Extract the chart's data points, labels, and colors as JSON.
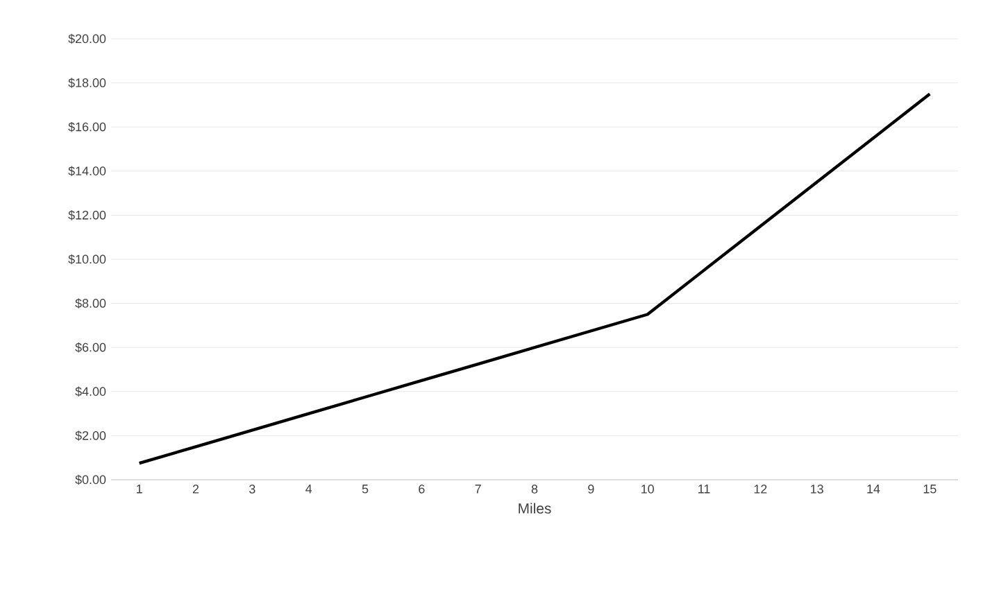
{
  "chart_data": {
    "type": "line",
    "xlabel": "Miles",
    "categories": [
      "1",
      "2",
      "3",
      "4",
      "5",
      "6",
      "7",
      "8",
      "9",
      "10",
      "11",
      "12",
      "13",
      "14",
      "15"
    ],
    "series": [
      {
        "color": "#000000",
        "values": [
          0.75,
          1.5,
          2.25,
          3.0,
          3.75,
          4.5,
          5.25,
          6.0,
          6.75,
          7.5,
          9.5,
          11.5,
          13.5,
          15.5,
          17.5
        ]
      }
    ],
    "ylim": [
      0,
      20
    ],
    "yticks": [
      {
        "value": 0,
        "label": "$0.00"
      },
      {
        "value": 2,
        "label": "$2.00"
      },
      {
        "value": 4,
        "label": "$4.00"
      },
      {
        "value": 6,
        "label": "$6.00"
      },
      {
        "value": 8,
        "label": "$8.00"
      },
      {
        "value": 10,
        "label": "$10.00"
      },
      {
        "value": 12,
        "label": "$12.00"
      },
      {
        "value": 14,
        "label": "$14.00"
      },
      {
        "value": 16,
        "label": "$16.00"
      },
      {
        "value": 18,
        "label": "$18.00"
      },
      {
        "value": 20,
        "label": "$20.00"
      }
    ],
    "grid": "y",
    "marker": "none",
    "line_style": "solid"
  }
}
